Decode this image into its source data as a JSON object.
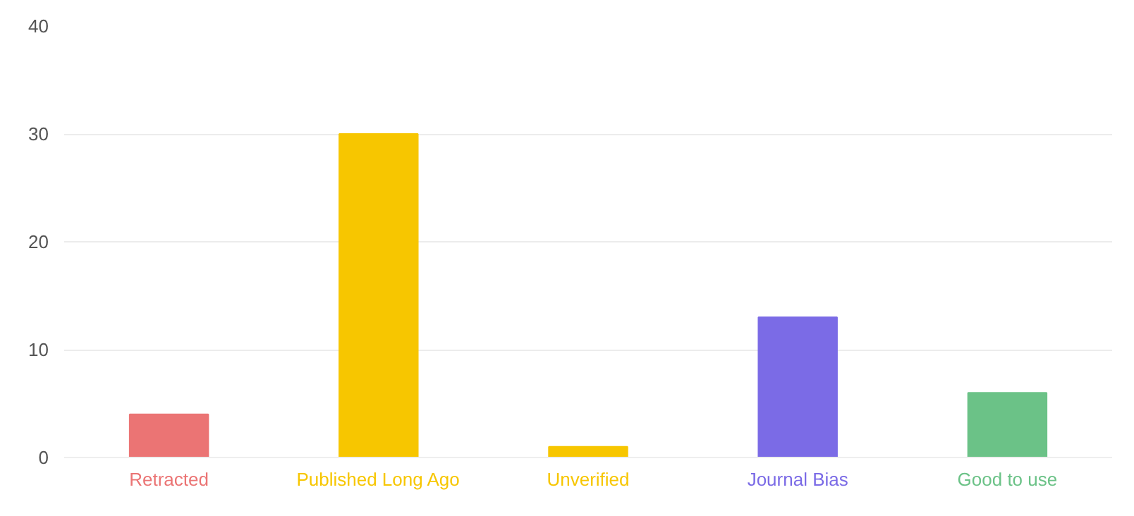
{
  "chart_data": {
    "type": "bar",
    "categories": [
      "Retracted",
      "Published Long Ago",
      "Unverified",
      "Journal Bias",
      "Good to use"
    ],
    "values": [
      4,
      30,
      1,
      13,
      6
    ],
    "colors": [
      "#eb7474",
      "#f7c600",
      "#f7c600",
      "#7b6be6",
      "#6bc287"
    ],
    "ylim": [
      0,
      40
    ],
    "yticks": [
      0,
      10,
      20,
      30,
      40
    ],
    "grid": "y"
  }
}
